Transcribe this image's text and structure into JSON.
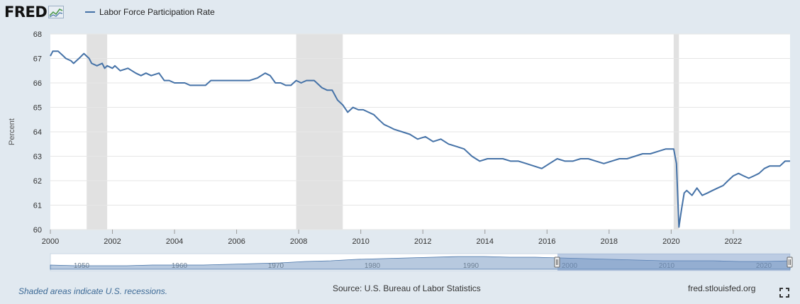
{
  "header": {
    "brand": "FRED"
  },
  "footer": {
    "note": "Shaded areas indicate U.S. recessions.",
    "source": "Source: U.S. Bureau of Labor Statistics",
    "url": "fred.stlouisfed.org"
  },
  "icons": {
    "brand_logo": "fred-graph-icon",
    "fullscreen": "fullscreen-icon"
  },
  "colors": {
    "series": "#4572a7",
    "recession": "#e1e1e1",
    "navigator_fill": "#7c9cc4",
    "background": "#e1e9f0"
  },
  "chart_data": {
    "type": "line",
    "title": "",
    "xlabel": "",
    "ylabel": "Percent",
    "xlim": [
      2000,
      2023.83
    ],
    "ylim": [
      60,
      68
    ],
    "yticks": [
      "60",
      "61",
      "62",
      "63",
      "64",
      "65",
      "66",
      "67",
      "68"
    ],
    "xticks": [
      "2000",
      "2002",
      "2004",
      "2006",
      "2008",
      "2010",
      "2012",
      "2014",
      "2016",
      "2018",
      "2020",
      "2022"
    ],
    "grid": true,
    "legend_position": "top-left",
    "recessions": [
      [
        2001.17,
        2001.83
      ],
      [
        2007.92,
        2009.42
      ],
      [
        2020.08,
        2020.25
      ]
    ],
    "series": [
      {
        "name": "Labor Force Participation Rate",
        "x": [
          2000,
          2000.08,
          2000.25,
          2000.42,
          2000.5,
          2000.67,
          2000.75,
          2000.92,
          2001.08,
          2001.25,
          2001.33,
          2001.5,
          2001.67,
          2001.75,
          2001.83,
          2002,
          2002.08,
          2002.25,
          2002.5,
          2002.75,
          2002.92,
          2003.08,
          2003.25,
          2003.5,
          2003.67,
          2003.83,
          2004,
          2004.17,
          2004.33,
          2004.5,
          2004.75,
          2005,
          2005.17,
          2005.42,
          2005.75,
          2006,
          2006.17,
          2006.42,
          2006.67,
          2006.92,
          2007.08,
          2007.25,
          2007.42,
          2007.58,
          2007.75,
          2007.92,
          2008.08,
          2008.25,
          2008.5,
          2008.75,
          2008.92,
          2009.08,
          2009.25,
          2009.42,
          2009.58,
          2009.75,
          2009.92,
          2010.08,
          2010.25,
          2010.42,
          2010.58,
          2010.75,
          2010.92,
          2011.08,
          2011.33,
          2011.58,
          2011.83,
          2012.08,
          2012.33,
          2012.58,
          2012.83,
          2013.08,
          2013.33,
          2013.58,
          2013.83,
          2014.08,
          2014.33,
          2014.58,
          2014.83,
          2015.08,
          2015.33,
          2015.58,
          2015.83,
          2016.08,
          2016.33,
          2016.58,
          2016.83,
          2017.08,
          2017.33,
          2017.58,
          2017.83,
          2018.08,
          2018.33,
          2018.58,
          2018.83,
          2019.08,
          2019.33,
          2019.58,
          2019.83,
          2020.08,
          2020.17,
          2020.25,
          2020.33,
          2020.42,
          2020.5,
          2020.67,
          2020.83,
          2021,
          2021.17,
          2021.33,
          2021.5,
          2021.67,
          2021.83,
          2022,
          2022.17,
          2022.33,
          2022.5,
          2022.67,
          2022.83,
          2023,
          2023.17,
          2023.33,
          2023.5,
          2023.67,
          2023.83
        ],
        "y": [
          67.1,
          67.3,
          67.3,
          67.1,
          67.0,
          66.9,
          66.8,
          67.0,
          67.2,
          67.0,
          66.8,
          66.7,
          66.8,
          66.6,
          66.7,
          66.6,
          66.7,
          66.5,
          66.6,
          66.4,
          66.3,
          66.4,
          66.3,
          66.4,
          66.1,
          66.1,
          66.0,
          66.0,
          66.0,
          65.9,
          65.9,
          65.9,
          66.1,
          66.1,
          66.1,
          66.1,
          66.1,
          66.1,
          66.2,
          66.4,
          66.3,
          66.0,
          66.0,
          65.9,
          65.9,
          66.1,
          66.0,
          66.1,
          66.1,
          65.8,
          65.7,
          65.7,
          65.3,
          65.1,
          64.8,
          65.0,
          64.9,
          64.9,
          64.8,
          64.7,
          64.5,
          64.3,
          64.2,
          64.1,
          64.0,
          63.9,
          63.7,
          63.8,
          63.6,
          63.7,
          63.5,
          63.4,
          63.3,
          63.0,
          62.8,
          62.9,
          62.9,
          62.9,
          62.8,
          62.8,
          62.7,
          62.6,
          62.5,
          62.7,
          62.9,
          62.8,
          62.8,
          62.9,
          62.9,
          62.8,
          62.7,
          62.8,
          62.9,
          62.9,
          63.0,
          63.1,
          63.1,
          63.2,
          63.3,
          63.3,
          62.7,
          60.1,
          60.8,
          61.5,
          61.6,
          61.4,
          61.7,
          61.4,
          61.5,
          61.6,
          61.7,
          61.8,
          62.0,
          62.2,
          62.3,
          62.2,
          62.1,
          62.2,
          62.3,
          62.5,
          62.6,
          62.6,
          62.6,
          62.8,
          62.8
        ]
      }
    ],
    "navigator": {
      "tick_labels": [
        "1950",
        "1960",
        "1970",
        "1980",
        "1990",
        "2000",
        "2010",
        "2020"
      ]
    }
  }
}
